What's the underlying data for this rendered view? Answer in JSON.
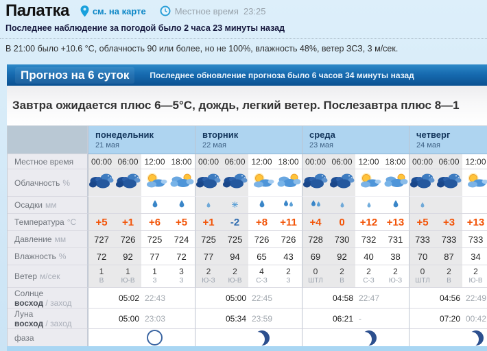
{
  "header": {
    "title": "Палатка",
    "map_link": "см. на карте",
    "local_time_label": "Местное время",
    "local_time": "23:25",
    "last_observation": "Последнее наблюдение за погодой было 2 часа 23 минуты назад",
    "current_conditions": "В 21:00 было +10.6 °C, облачность 90 или более, но не 100%, влажность 48%, ветер ЗСЗ, 3 м/сек."
  },
  "banner": {
    "title": "Прогноз на 6 суток",
    "subtitle": "Последнее обновление прогноза было 6 часов 34 минуты назад"
  },
  "summary": "Завтра ожидается плюс 6—5°C, дождь, легкий ветер. Послезавтра плюс 8—1",
  "colors": {
    "accent_link": "#0c86c6",
    "banner_top": "#2e8ac9",
    "banner_bottom": "#0b5191",
    "temp_positive": "#f25408",
    "temp_negative": "#2f6cb0",
    "day_header_bg": "#aed4f0",
    "night_cell_bg": "#e9e9ea",
    "page_bg": "#d2e8f7"
  },
  "table": {
    "row_labels": {
      "time": "Местное время",
      "cloud": "Облачность",
      "cloud_unit": "%",
      "precip": "Осадки",
      "precip_unit": "мм",
      "temp": "Температура",
      "temp_unit": "°C",
      "pressure": "Давление",
      "pressure_unit": "мм",
      "humidity": "Влажность",
      "humidity_unit": "%",
      "wind": "Ветер",
      "wind_unit": "м/сек",
      "sun": "Солнце",
      "moon": "Луна",
      "rise": "восход",
      "set": "заход",
      "phase": "фаза"
    },
    "days": [
      {
        "name": "понедельник",
        "date": "21 мая",
        "times": [
          "00:00",
          "06:00",
          "12:00",
          "18:00"
        ],
        "night": [
          true,
          true,
          false,
          false
        ],
        "cloud_icons": [
          "dark-clouds",
          "dark-clouds",
          "sun-cloud",
          "clouds-sun"
        ],
        "precip_icons": [
          "",
          "",
          "raindrop",
          "raindrop"
        ],
        "temps": [
          "+5",
          "+1",
          "+6",
          "+5"
        ],
        "pressure": [
          "727",
          "726",
          "725",
          "724"
        ],
        "humidity": [
          "72",
          "92",
          "77",
          "72"
        ],
        "wind_speed": [
          "1",
          "1",
          "1",
          "3"
        ],
        "wind_dir": [
          "В",
          "Ю-В",
          "З",
          "З"
        ],
        "sun_rise": "05:02",
        "sun_set": "22:43",
        "moon_rise": "05:00",
        "moon_set": "23:03",
        "phase": "new-moon"
      },
      {
        "name": "вторник",
        "date": "22 мая",
        "times": [
          "00:00",
          "06:00",
          "12:00",
          "18:00"
        ],
        "night": [
          true,
          true,
          false,
          false
        ],
        "cloud_icons": [
          "dark-clouds",
          "dark-clouds",
          "sun-cloud",
          "clouds-sun"
        ],
        "precip_icons": [
          "raindrop-small",
          "snowflake",
          "raindrop",
          "raindrops"
        ],
        "temps": [
          "+1",
          "-2",
          "+8",
          "+11"
        ],
        "pressure": [
          "725",
          "725",
          "726",
          "726"
        ],
        "humidity": [
          "77",
          "94",
          "65",
          "43"
        ],
        "wind_speed": [
          "2",
          "2",
          "4",
          "2"
        ],
        "wind_dir": [
          "Ю-З",
          "Ю-В",
          "С-З",
          "З"
        ],
        "sun_rise": "05:00",
        "sun_set": "22:45",
        "moon_rise": "05:34",
        "moon_set": "23:59",
        "phase": "crescent-moon"
      },
      {
        "name": "среда",
        "date": "23 мая",
        "times": [
          "00:00",
          "06:00",
          "12:00",
          "18:00"
        ],
        "night": [
          true,
          true,
          false,
          false
        ],
        "cloud_icons": [
          "dark-clouds",
          "dark-clouds",
          "sun-cloud",
          "clouds-sun"
        ],
        "precip_icons": [
          "raindrops",
          "raindrop-small",
          "raindrop-small",
          "raindrop"
        ],
        "temps": [
          "+4",
          "0",
          "+12",
          "+13"
        ],
        "pressure": [
          "728",
          "730",
          "732",
          "731"
        ],
        "humidity": [
          "69",
          "92",
          "40",
          "38"
        ],
        "wind_speed": [
          "0",
          "2",
          "2",
          "2"
        ],
        "wind_dir": [
          "ШТЛ",
          "В",
          "С-З",
          "Ю-З"
        ],
        "sun_rise": "04:58",
        "sun_set": "22:47",
        "moon_rise": "06:21",
        "moon_set": "-",
        "phase": "crescent-moon"
      },
      {
        "name": "четверг",
        "date": "24 мая",
        "times": [
          "00:00",
          "06:00",
          "12:00"
        ],
        "night": [
          true,
          true,
          false
        ],
        "cloud_icons": [
          "dark-clouds",
          "dark-clouds",
          "sun-cloud"
        ],
        "precip_icons": [
          "raindrop-small",
          "",
          ""
        ],
        "temps": [
          "+5",
          "+3",
          "+13"
        ],
        "pressure": [
          "733",
          "733",
          "733"
        ],
        "humidity": [
          "70",
          "87",
          "34"
        ],
        "wind_speed": [
          "0",
          "2",
          "2"
        ],
        "wind_dir": [
          "ШТЛ",
          "В",
          "Ю-В"
        ],
        "sun_rise": "04:56",
        "sun_set": "22:49",
        "moon_rise": "07:20",
        "moon_set": "00:42",
        "phase": "crescent-moon"
      }
    ]
  }
}
